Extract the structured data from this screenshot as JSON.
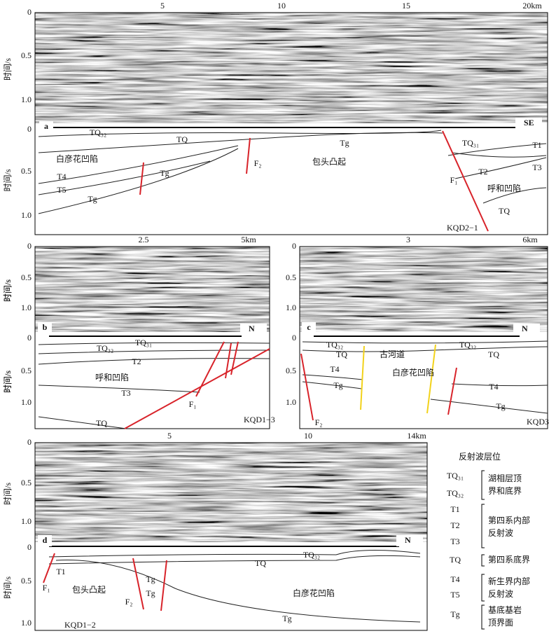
{
  "panels": [
    {
      "label": "a",
      "profile": "KQD2−1",
      "direction": "SE",
      "x_ticks": [
        "5",
        "10",
        "15",
        "20km"
      ],
      "y_title": "时间/s",
      "y_ticks": [
        "0",
        "0.5",
        "1.0"
      ],
      "interp_y_ticks": [
        "0",
        "0.5",
        "1.0"
      ],
      "labels": [
        "TQ₃₂",
        "TQ",
        "白彦花凹陷",
        "T4",
        "T5",
        "Tg",
        "Tg",
        "F₂",
        "Tg",
        "包头凸起",
        "TQ₃₁",
        "T1",
        "T3",
        "T2",
        "F₁",
        "呼和凹陷",
        "TQ"
      ]
    },
    {
      "label": "b",
      "profile": "KQD1−3",
      "direction": "N",
      "x_ticks": [
        "2.5",
        "5km"
      ],
      "y_title": "时间/s",
      "y_ticks": [
        "0",
        "0.5",
        "1.0"
      ],
      "interp_y_ticks": [
        "0",
        "0.5",
        "1.0"
      ],
      "labels": [
        "TQ₃₁",
        "TQ₃₂",
        "T2",
        "呼和凹陷",
        "T3",
        "F₁",
        "TQ"
      ]
    },
    {
      "label": "c",
      "profile": "KQD3",
      "direction": "N",
      "x_ticks": [
        "3",
        "6km"
      ],
      "y_title": "时间/s",
      "y_ticks": [
        "0",
        "0.5",
        "1.0"
      ],
      "interp_y_ticks": [
        "0",
        "0.5",
        "1.0"
      ],
      "labels": [
        "TQ₃₂",
        "TQ",
        "古河道",
        "TQ₃₂",
        "TQ",
        "T4",
        "白彦花凹陷",
        "Tg",
        "T4",
        "Tg",
        "F₂"
      ]
    },
    {
      "label": "d",
      "profile": "KQD1−2",
      "direction": "N",
      "x_ticks": [
        "5",
        "10",
        "14km"
      ],
      "y_title": "时间/s",
      "y_ticks": [
        "0",
        "0.5",
        "1.0"
      ],
      "interp_y_ticks": [
        "0",
        "0.5",
        "1.0"
      ],
      "labels": [
        "TQ₃₂",
        "TQ",
        "T1",
        "Tg",
        "包头凸起",
        "F₁",
        "白彦花凹陷",
        "Tg",
        "F₂",
        "Tg"
      ]
    }
  ],
  "legend": {
    "title": "反射波层位",
    "groups": [
      {
        "keys": [
          "TQ₃₁",
          "TQ₃₂"
        ],
        "desc": [
          "湖相层顶",
          "界和底界"
        ]
      },
      {
        "keys": [
          "T1",
          "T2",
          "T3"
        ],
        "desc": [
          "第四系内部",
          "反射波"
        ]
      },
      {
        "keys": [
          "TQ"
        ],
        "desc": [
          "第四系底界"
        ]
      },
      {
        "keys": [
          "T4",
          "T5"
        ],
        "desc": [
          "新生界内部",
          "反射波"
        ]
      },
      {
        "keys": [
          "Tg"
        ],
        "desc": [
          "基底基岩",
          "顶界面"
        ]
      }
    ]
  }
}
